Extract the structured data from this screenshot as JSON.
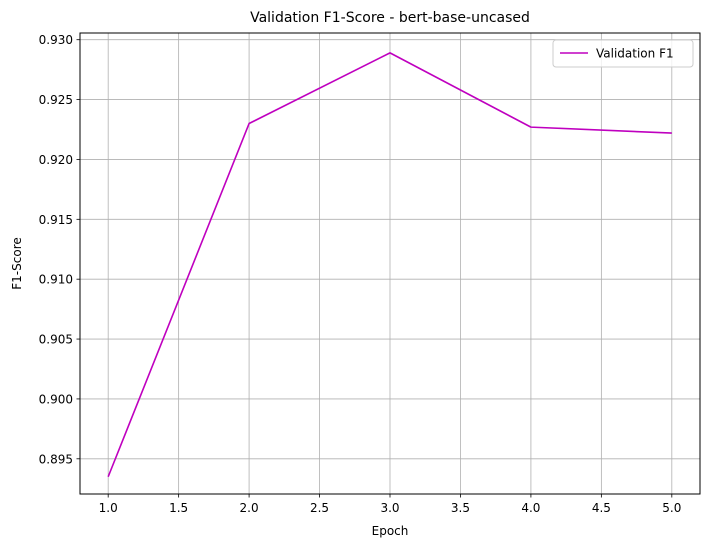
{
  "chart_data": {
    "type": "line",
    "title": "Validation F1-Score - bert-base-uncased",
    "xlabel": "Epoch",
    "ylabel": "F1-Score",
    "x": [
      1.0,
      2.0,
      3.0,
      4.0,
      5.0
    ],
    "series": [
      {
        "name": "Validation F1",
        "color": "#bf00bf",
        "values": [
          0.8935,
          0.923,
          0.9289,
          0.9227,
          0.9222
        ]
      }
    ],
    "xlim": [
      0.8,
      5.2
    ],
    "ylim": [
      0.89206,
      0.93056
    ],
    "xticks": [
      1.0,
      1.5,
      2.0,
      2.5,
      3.0,
      3.5,
      4.0,
      4.5,
      5.0
    ],
    "xtick_labels": [
      "1.0",
      "1.5",
      "2.0",
      "2.5",
      "3.0",
      "3.5",
      "4.0",
      "4.5",
      "5.0"
    ],
    "yticks": [
      0.895,
      0.9,
      0.905,
      0.91,
      0.915,
      0.92,
      0.925,
      0.93
    ],
    "ytick_labels": [
      "0.895",
      "0.900",
      "0.905",
      "0.910",
      "0.915",
      "0.920",
      "0.925",
      "0.930"
    ],
    "grid": true,
    "legend_position": "top-right"
  }
}
